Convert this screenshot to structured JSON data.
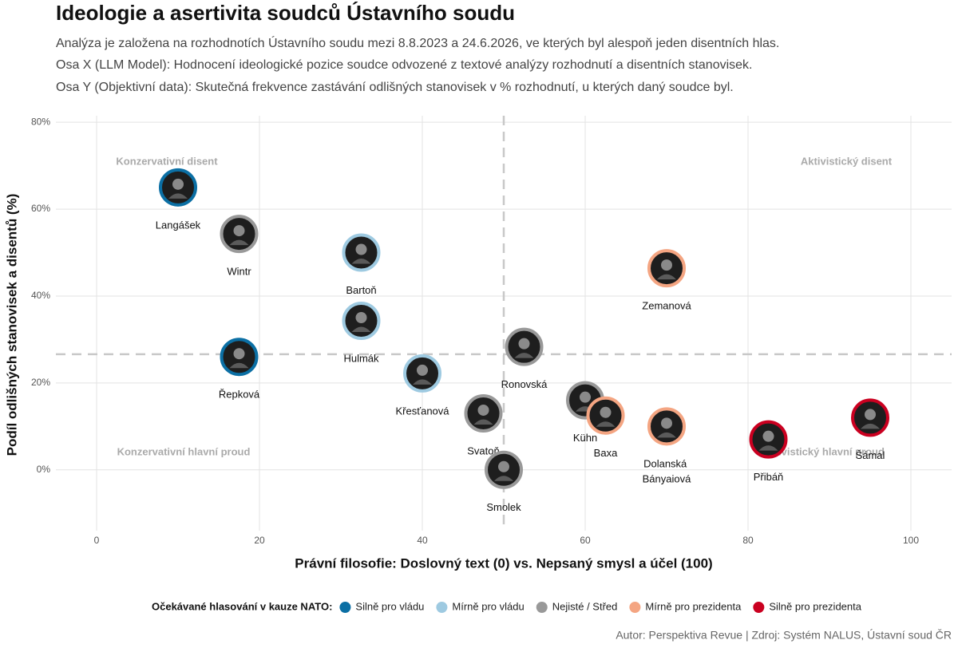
{
  "chart_data": {
    "type": "scatter",
    "title": "Ideologie a asertivita soudců Ústavního soudu",
    "subtitle": [
      "Analýza je založena na rozhodnotích Ústavního soudu mezi 8.8.2023 a 24.6.2026, ve kterých byl alespoň jeden disentních hlas.",
      "Osa X (LLM Model): Hodnocení ideologické pozice soudce odvozené z textové analýzy rozhodnutí a disentních stanovisek.",
      "Osa Y (Objektivní data): Skutečná frekvence zastávání odlišných stanovisek v % rozhodnutí, u kterých daný soudce byl."
    ],
    "x_label": "Právní filosofie: Doslovný text (0) vs. Nepsaný smysl a účel (100)",
    "y_label": "Podíl odlišných stanovisek a disentů (%)",
    "xlim": [
      -5,
      105
    ],
    "ylim": [
      -14,
      81.5
    ],
    "xticks": [
      0,
      20,
      40,
      60,
      80,
      100
    ],
    "yticks": [
      {
        "value": 0,
        "label": "0%"
      },
      {
        "value": 20,
        "label": "20%"
      },
      {
        "value": 40,
        "label": "40%"
      },
      {
        "value": 60,
        "label": "60%"
      },
      {
        "value": 80,
        "label": "80%"
      }
    ],
    "grid": true,
    "reference_lines": {
      "x": 50,
      "y": 26.6
    },
    "quadrant_labels": [
      "Konzervativní disent",
      "Aktivistický disent",
      "Konzervativní hlavní proud",
      "Aktivistický hlavní proud"
    ],
    "legend_title": "Očekávané hlasování v kauze NATO:",
    "legend_position": "bottom",
    "series": [
      {
        "name": "Silně pro vládu",
        "color": "#0b6fa4",
        "labels": [
          "Langášek",
          "Řepková"
        ],
        "x": [
          10,
          17.5
        ],
        "values": [
          65,
          26
        ]
      },
      {
        "name": "Mírně pro vládu",
        "color": "#9ecae1",
        "labels": [
          "Bartoň",
          "Hulmák",
          "Křesťanová"
        ],
        "x": [
          32.5,
          32.5,
          40
        ],
        "values": [
          50,
          34.3,
          22.2
        ]
      },
      {
        "name": "Nejisté / Střed",
        "color": "#999999",
        "labels": [
          "Wintr",
          "Ronovská",
          "Svatoň",
          "Smolek",
          "Kühn"
        ],
        "x": [
          17.5,
          52.5,
          47.5,
          50,
          60
        ],
        "values": [
          54.3,
          28.3,
          13,
          0,
          16
        ]
      },
      {
        "name": "Mírně pro prezidenta",
        "color": "#f4a582",
        "labels": [
          "Baxa",
          "Zemanová",
          "Dolanská Bányaiová"
        ],
        "x": [
          62.5,
          70,
          70
        ],
        "values": [
          12.5,
          46.4,
          10
        ]
      },
      {
        "name": "Silně pro prezidenta",
        "color": "#ca0020",
        "labels": [
          "Přibáň",
          "Šámal"
        ],
        "x": [
          82.5,
          95
        ],
        "values": [
          7,
          12
        ]
      }
    ],
    "caption": "Autor: Perspektiva Revue | Zdroj: Systém NALUS, Ústavní soud ČR"
  }
}
